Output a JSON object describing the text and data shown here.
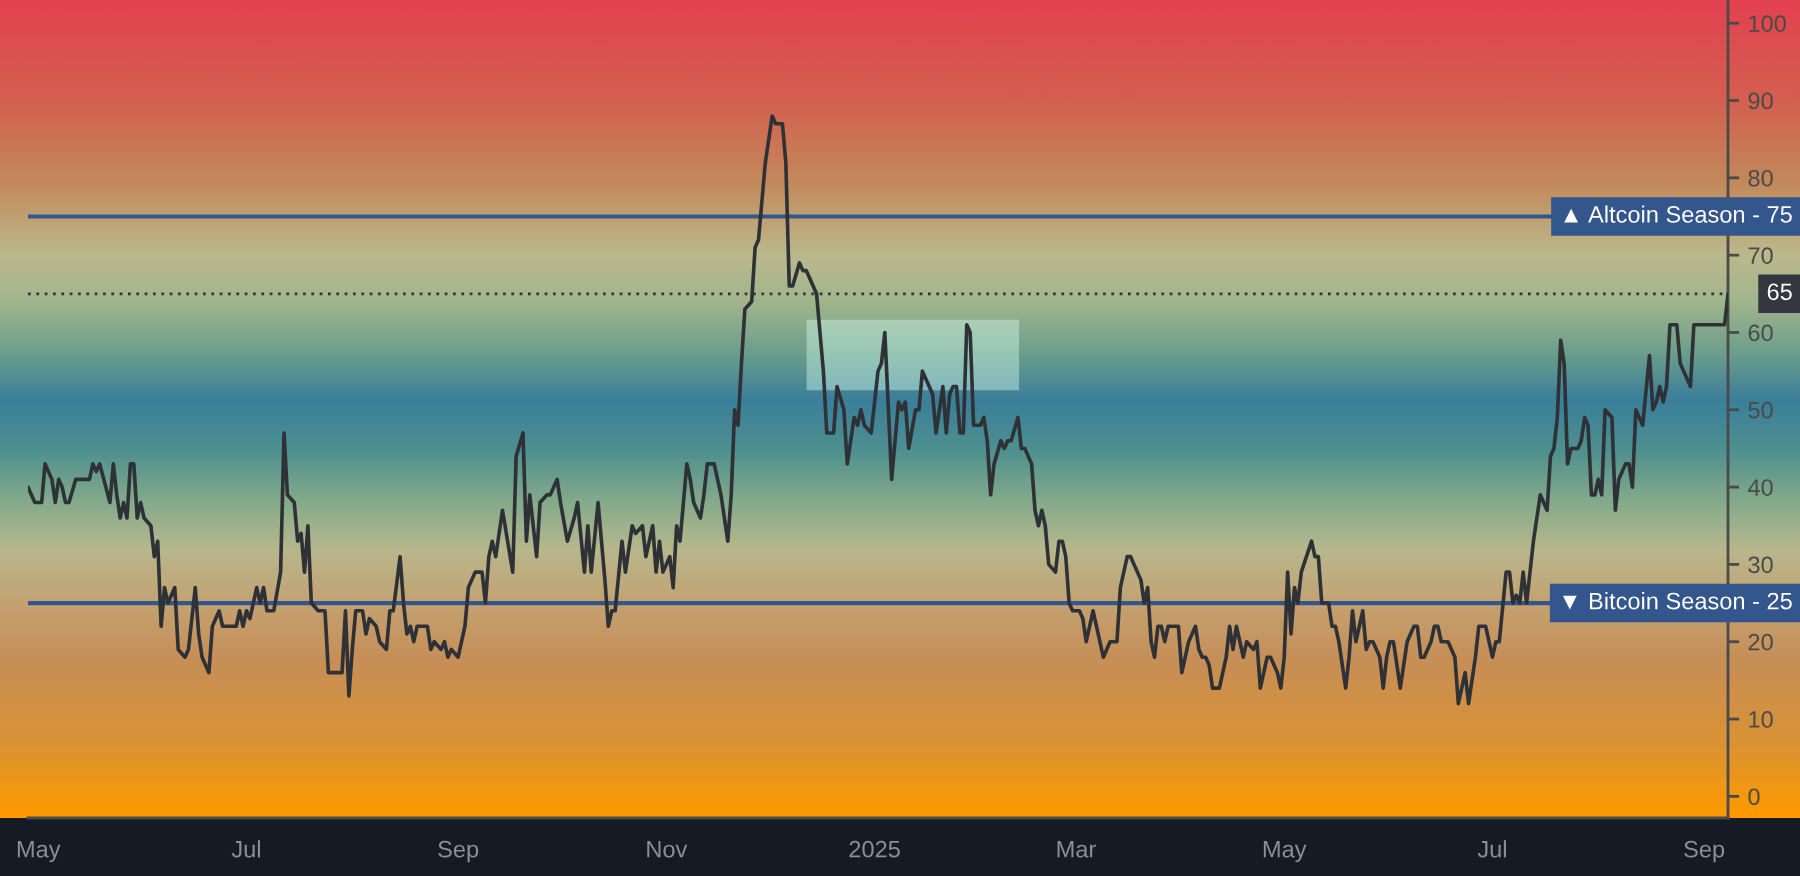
{
  "chart_data": {
    "type": "line",
    "x": [
      "2024-04-28",
      "2024-04-30",
      "2024-05-02",
      "2024-05-03",
      "2024-05-05",
      "2024-05-06",
      "2024-05-07",
      "2024-05-08",
      "2024-05-09",
      "2024-05-10",
      "2024-05-12",
      "2024-05-16",
      "2024-05-17",
      "2024-05-18",
      "2024-05-19",
      "2024-05-22",
      "2024-05-23",
      "2024-05-24",
      "2024-05-25",
      "2024-05-26",
      "2024-05-27",
      "2024-05-28",
      "2024-05-29",
      "2024-05-30",
      "2024-05-31",
      "2024-06-01",
      "2024-06-03",
      "2024-06-04",
      "2024-06-05",
      "2024-06-06",
      "2024-06-07",
      "2024-06-08",
      "2024-06-10",
      "2024-06-11",
      "2024-06-13",
      "2024-06-14",
      "2024-06-16",
      "2024-06-17",
      "2024-06-18",
      "2024-06-20",
      "2024-06-21",
      "2024-06-23",
      "2024-06-24",
      "2024-06-28",
      "2024-06-29",
      "2024-06-30",
      "2024-07-01",
      "2024-07-02",
      "2024-07-04",
      "2024-07-05",
      "2024-07-06",
      "2024-07-07",
      "2024-07-09",
      "2024-07-11",
      "2024-07-12",
      "2024-07-13",
      "2024-07-15",
      "2024-07-16",
      "2024-07-17",
      "2024-07-18",
      "2024-07-19",
      "2024-07-20",
      "2024-07-22",
      "2024-07-24",
      "2024-07-25",
      "2024-07-29",
      "2024-07-30",
      "2024-07-31",
      "2024-08-01",
      "2024-08-02",
      "2024-08-04",
      "2024-08-05",
      "2024-08-06",
      "2024-08-08",
      "2024-08-09",
      "2024-08-11",
      "2024-08-12",
      "2024-08-13",
      "2024-08-15",
      "2024-08-16",
      "2024-08-17",
      "2024-08-18",
      "2024-08-19",
      "2024-08-20",
      "2024-08-23",
      "2024-08-24",
      "2024-08-25",
      "2024-08-27",
      "2024-08-28",
      "2024-08-29",
      "2024-08-30",
      "2024-09-01",
      "2024-09-03",
      "2024-09-04",
      "2024-09-06",
      "2024-09-08",
      "2024-09-09",
      "2024-09-10",
      "2024-09-11",
      "2024-09-12",
      "2024-09-14",
      "2024-09-17",
      "2024-09-18",
      "2024-09-20",
      "2024-09-21",
      "2024-09-22",
      "2024-09-24",
      "2024-09-25",
      "2024-09-27",
      "2024-09-28",
      "2024-09-30",
      "2024-10-01",
      "2024-10-03",
      "2024-10-05",
      "2024-10-06",
      "2024-10-08",
      "2024-10-09",
      "2024-10-10",
      "2024-10-12",
      "2024-10-14",
      "2024-10-15",
      "2024-10-16",
      "2024-10-17",
      "2024-10-19",
      "2024-10-20",
      "2024-10-22",
      "2024-10-23",
      "2024-10-25",
      "2024-10-26",
      "2024-10-28",
      "2024-10-29",
      "2024-10-30",
      "2024-10-31",
      "2024-11-02",
      "2024-11-03",
      "2024-11-04",
      "2024-11-05",
      "2024-11-07",
      "2024-11-08",
      "2024-11-09",
      "2024-11-11",
      "2024-11-12",
      "2024-11-13",
      "2024-11-15",
      "2024-11-17",
      "2024-11-19",
      "2024-11-20",
      "2024-11-21",
      "2024-11-22",
      "2024-11-23",
      "2024-11-24",
      "2024-11-26",
      "2024-11-27",
      "2024-11-28",
      "2024-11-30",
      "2024-12-02",
      "2024-12-03",
      "2024-12-05",
      "2024-12-06",
      "2024-12-07",
      "2024-12-08",
      "2024-12-10",
      "2024-12-11",
      "2024-12-12",
      "2024-12-13",
      "2024-12-15",
      "2024-12-17",
      "2024-12-18",
      "2024-12-20",
      "2024-12-21",
      "2024-12-23",
      "2024-12-24",
      "2024-12-26",
      "2024-12-27",
      "2024-12-28",
      "2024-12-29",
      "2024-12-31",
      "2025-01-02",
      "2025-01-03",
      "2025-01-04",
      "2025-01-06",
      "2025-01-08",
      "2025-01-09",
      "2025-01-10",
      "2025-01-11",
      "2025-01-13",
      "2025-01-14",
      "2025-01-15",
      "2025-01-17",
      "2025-01-18",
      "2025-01-19",
      "2025-01-21",
      "2025-01-22",
      "2025-01-23",
      "2025-01-24",
      "2025-01-25",
      "2025-01-26",
      "2025-01-27",
      "2025-01-28",
      "2025-01-29",
      "2025-01-30",
      "2025-02-01",
      "2025-02-02",
      "2025-02-03",
      "2025-02-04",
      "2025-02-05",
      "2025-02-07",
      "2025-02-08",
      "2025-02-09",
      "2025-02-10",
      "2025-02-12",
      "2025-02-13",
      "2025-02-14",
      "2025-02-16",
      "2025-02-17",
      "2025-02-18",
      "2025-02-19",
      "2025-02-20",
      "2025-02-21",
      "2025-02-23",
      "2025-02-24",
      "2025-02-25",
      "2025-02-26",
      "2025-02-27",
      "2025-02-28",
      "2025-03-02",
      "2025-03-03",
      "2025-03-04",
      "2025-03-06",
      "2025-03-07",
      "2025-03-08",
      "2025-03-09",
      "2025-03-11",
      "2025-03-13",
      "2025-03-14",
      "2025-03-16",
      "2025-03-17",
      "2025-03-19",
      "2025-03-20",
      "2025-03-21",
      "2025-03-22",
      "2025-03-23",
      "2025-03-24",
      "2025-03-25",
      "2025-03-26",
      "2025-03-27",
      "2025-03-28",
      "2025-03-30",
      "2025-03-31",
      "2025-04-01",
      "2025-04-02",
      "2025-04-03",
      "2025-04-05",
      "2025-04-06",
      "2025-04-07",
      "2025-04-08",
      "2025-04-09",
      "2025-04-10",
      "2025-04-12",
      "2025-04-14",
      "2025-04-15",
      "2025-04-16",
      "2025-04-17",
      "2025-04-18",
      "2025-04-19",
      "2025-04-20",
      "2025-04-22",
      "2025-04-23",
      "2025-04-24",
      "2025-04-26",
      "2025-04-27",
      "2025-04-29",
      "2025-04-30",
      "2025-05-01",
      "2025-05-02",
      "2025-05-03",
      "2025-05-04",
      "2025-05-05",
      "2025-05-06",
      "2025-05-09",
      "2025-05-10",
      "2025-05-11",
      "2025-05-12",
      "2025-05-14",
      "2025-05-15",
      "2025-05-16",
      "2025-05-17",
      "2025-05-19",
      "2025-05-20",
      "2025-05-21",
      "2025-05-22",
      "2025-05-24",
      "2025-05-25",
      "2025-05-26",
      "2025-05-27",
      "2025-05-29",
      "2025-05-30",
      "2025-05-31",
      "2025-06-01",
      "2025-06-02",
      "2025-06-04",
      "2025-06-05",
      "2025-06-06",
      "2025-06-08",
      "2025-06-09",
      "2025-06-10",
      "2025-06-11",
      "2025-06-13",
      "2025-06-14",
      "2025-06-15",
      "2025-06-16",
      "2025-06-18",
      "2025-06-20",
      "2025-06-21",
      "2025-06-23",
      "2025-06-24",
      "2025-06-26",
      "2025-06-27",
      "2025-06-29",
      "2025-06-30",
      "2025-07-01",
      "2025-07-02",
      "2025-07-03",
      "2025-07-05",
      "2025-07-06",
      "2025-07-07",
      "2025-07-08",
      "2025-07-09",
      "2025-07-10",
      "2025-07-11",
      "2025-07-12",
      "2025-07-13",
      "2025-07-14",
      "2025-07-15",
      "2025-07-17",
      "2025-07-18",
      "2025-07-19",
      "2025-07-20",
      "2025-07-21",
      "2025-07-22",
      "2025-07-23",
      "2025-07-24",
      "2025-07-26",
      "2025-07-27",
      "2025-07-28",
      "2025-07-29",
      "2025-07-30",
      "2025-07-31",
      "2025-08-01",
      "2025-08-02",
      "2025-08-03",
      "2025-08-05",
      "2025-08-06",
      "2025-08-07",
      "2025-08-09",
      "2025-08-10",
      "2025-08-11",
      "2025-08-12",
      "2025-08-14",
      "2025-08-16",
      "2025-08-17",
      "2025-08-18",
      "2025-08-19",
      "2025-08-20",
      "2025-08-21",
      "2025-08-22",
      "2025-08-23",
      "2025-08-24",
      "2025-08-25",
      "2025-08-26",
      "2025-08-28",
      "2025-08-29",
      "2025-08-30",
      "2025-09-03",
      "2025-09-07",
      "2025-09-08"
    ],
    "series": [
      {
        "color": "#2e3236",
        "values": [
          40,
          38,
          38,
          43,
          41,
          38,
          41,
          40,
          38,
          38,
          41,
          41,
          43,
          42,
          43,
          38,
          43,
          39,
          36,
          38,
          36,
          43,
          43,
          36,
          38,
          36,
          35,
          31,
          33,
          22,
          27,
          25,
          27,
          19,
          18,
          19,
          27,
          21,
          18,
          16,
          22,
          24,
          22,
          22,
          24,
          22,
          24,
          23,
          27,
          25,
          27,
          24,
          24,
          29,
          47,
          39,
          38,
          33,
          34,
          29,
          35,
          25,
          24,
          24,
          16,
          16,
          24,
          13,
          19,
          24,
          24,
          21,
          23,
          22,
          20,
          19,
          24,
          24,
          31,
          25,
          21,
          22,
          20,
          22,
          22,
          19,
          20,
          19,
          20,
          18,
          19,
          18,
          22,
          27,
          29,
          29,
          25,
          31,
          33,
          31,
          37,
          29,
          44,
          47,
          33,
          39,
          31,
          38,
          39,
          39,
          41,
          38,
          33,
          36,
          38,
          29,
          35,
          29,
          38,
          28,
          22,
          24,
          24,
          33,
          29,
          35,
          34,
          35,
          31,
          35,
          29,
          33,
          29,
          31,
          27,
          35,
          33,
          43,
          41,
          38,
          36,
          39,
          43,
          43,
          39,
          33,
          39,
          50,
          48,
          56,
          63,
          64,
          71,
          72,
          82,
          88,
          87,
          87,
          82,
          66,
          66,
          69,
          68,
          68,
          67,
          65,
          55,
          47,
          47,
          53,
          50,
          43,
          49,
          48,
          50,
          48,
          47,
          55,
          56,
          60,
          41,
          51,
          50,
          51,
          45,
          50,
          50,
          55,
          53,
          52,
          47,
          53,
          47,
          52,
          53,
          53,
          47,
          47,
          61,
          60,
          48,
          48,
          49,
          46,
          39,
          43,
          46,
          45,
          46,
          46,
          49,
          45,
          45,
          43,
          37,
          35,
          37,
          35,
          30,
          29,
          33,
          33,
          31,
          25,
          24,
          24,
          23,
          20,
          24,
          22,
          20,
          18,
          20,
          20,
          27,
          31,
          31,
          29,
          28,
          25,
          27,
          20,
          18,
          22,
          22,
          20,
          22,
          22,
          22,
          16,
          18,
          20,
          22,
          19,
          18,
          18,
          17,
          14,
          14,
          18,
          22,
          19,
          22,
          20,
          18,
          20,
          19,
          20,
          14,
          18,
          18,
          16,
          14,
          18,
          29,
          21,
          27,
          25,
          29,
          33,
          31,
          31,
          25,
          25,
          22,
          22,
          20,
          14,
          18,
          24,
          20,
          24,
          19,
          20,
          20,
          18,
          14,
          18,
          20,
          20,
          14,
          17,
          20,
          22,
          22,
          18,
          18,
          20,
          22,
          22,
          20,
          20,
          18,
          12,
          16,
          12,
          18,
          22,
          22,
          20,
          18,
          20,
          20,
          29,
          29,
          25,
          26,
          25,
          29,
          25,
          29,
          33,
          36,
          39,
          37,
          44,
          45,
          49,
          59,
          56,
          43,
          45,
          45,
          46,
          49,
          48,
          39,
          39,
          41,
          39,
          50,
          49,
          37,
          41,
          43,
          43,
          40,
          50,
          48,
          57,
          50,
          51,
          53,
          51,
          53,
          61,
          61,
          61,
          56,
          55,
          53,
          61,
          61,
          61,
          61,
          65
        ]
      }
    ],
    "xlim": [
      "2024-04-28",
      "2025-09-08"
    ],
    "xticks": [
      {
        "value": "2024-05-01",
        "label": "May"
      },
      {
        "value": "2024-07-01",
        "label": "Jul"
      },
      {
        "value": "2024-09-01",
        "label": "Sep"
      },
      {
        "value": "2024-11-01",
        "label": "Nov"
      },
      {
        "value": "2025-01-01",
        "label": "2025"
      },
      {
        "value": "2025-03-01",
        "label": "Mar"
      },
      {
        "value": "2025-05-01",
        "label": "May"
      },
      {
        "value": "2025-07-01",
        "label": "Jul"
      },
      {
        "value": "2025-09-01",
        "label": "Sep"
      }
    ],
    "ylim": [
      -2.8,
      103
    ],
    "yticks": [
      0,
      10,
      20,
      30,
      40,
      50,
      60,
      70,
      80,
      90,
      100
    ],
    "ref_lines": [
      {
        "axis": "y",
        "value": 75,
        "label": "▲ Altcoin Season - 75",
        "color": "#33568c",
        "line_style": "solid"
      },
      {
        "axis": "y",
        "value": 25,
        "label": "▼ Bitcoin Season - 25",
        "color": "#33568c",
        "line_style": "solid"
      },
      {
        "axis": "y",
        "value": 65,
        "label": "65",
        "color": "#34373f",
        "line_style": "dotted"
      }
    ]
  }
}
